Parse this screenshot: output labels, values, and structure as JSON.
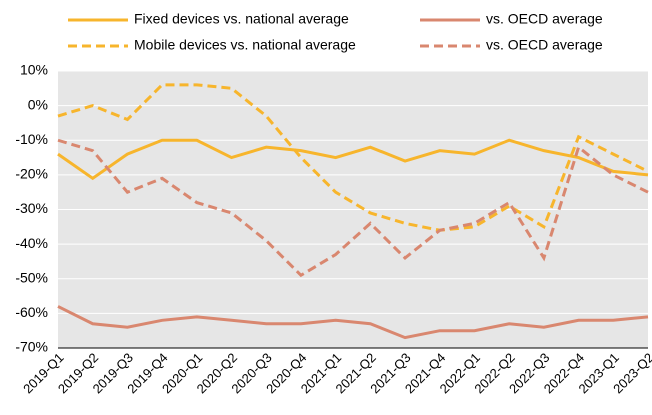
{
  "chart_data": {
    "type": "line",
    "categories": [
      "2019-Q1",
      "2019-Q2",
      "2019-Q3",
      "2019-Q4",
      "2020-Q1",
      "2020-Q2",
      "2020-Q3",
      "2020-Q4",
      "2021-Q1",
      "2021-Q2",
      "2021-Q3",
      "2021-Q4",
      "2022-Q1",
      "2022-Q2",
      "2022-Q3",
      "2022-Q4",
      "2023-Q1",
      "2023-Q2"
    ],
    "series": [
      {
        "name": "Fixed devices vs. national average",
        "color": "#f7b52c",
        "dash": false,
        "values": [
          -14,
          -21,
          -14,
          -10,
          -10,
          -15,
          -12,
          -13,
          -15,
          -12,
          -16,
          -13,
          -14,
          -10,
          -13,
          -15,
          -19,
          -20
        ]
      },
      {
        "name": "vs. OECD average",
        "color": "#d9876f",
        "dash": false,
        "values": [
          -58,
          -63,
          -64,
          -62,
          -61,
          -62,
          -63,
          -63,
          -62,
          -63,
          -67,
          -65,
          -65,
          -63,
          -64,
          -62,
          -62,
          -61
        ]
      },
      {
        "name": "Mobile devices vs. national average",
        "color": "#f7b52c",
        "dash": true,
        "values": [
          -3,
          0,
          -4,
          6,
          6,
          5,
          -3,
          -15,
          -25,
          -31,
          -34,
          -36,
          -35,
          -29,
          -35,
          -9,
          -14,
          -19
        ]
      },
      {
        "name": "vs. OECD average",
        "color": "#d9876f",
        "dash": true,
        "values": [
          -10,
          -13,
          -25,
          -21,
          -28,
          -31,
          -39,
          -49,
          -43,
          -34,
          -44,
          -36,
          -34,
          -28,
          -44,
          -12,
          -20,
          -25
        ]
      }
    ],
    "ylim": [
      -70,
      10
    ],
    "yticks": [
      {
        "value": -70,
        "label": "-70%"
      },
      {
        "value": -60,
        "label": "-60%"
      },
      {
        "value": -50,
        "label": "-50%"
      },
      {
        "value": -40,
        "label": "-40%"
      },
      {
        "value": -30,
        "label": "-30%"
      },
      {
        "value": -20,
        "label": "-20%"
      },
      {
        "value": -10,
        "label": "-10%"
      },
      {
        "value": 0,
        "label": "0%"
      },
      {
        "value": 10,
        "label": "10%"
      }
    ],
    "grid": true
  }
}
